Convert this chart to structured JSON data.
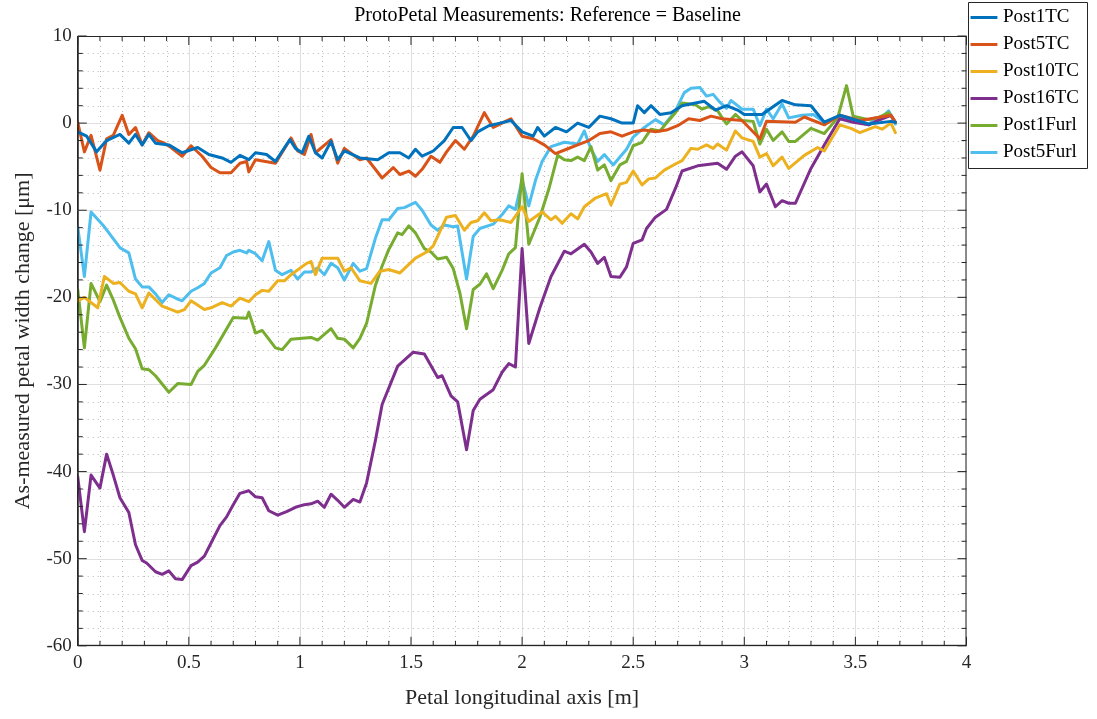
{
  "chart_data": {
    "type": "line",
    "title": "ProtoPetal Measurements: Reference = Baseline",
    "xlabel": "Petal longitudinal axis [m]",
    "ylabel": "As-measured petal width change [μm]",
    "xlim": [
      0,
      4
    ],
    "ylim": [
      -60,
      10
    ],
    "xticks": [
      0,
      {
        "value": 0.1,
        "label": null
      },
      {
        "value": 0.2,
        "label": null
      },
      {
        "value": 0.3,
        "label": null
      },
      {
        "value": 0.4,
        "label": null
      },
      0.5,
      {
        "value": 0.6,
        "label": null
      },
      {
        "value": 0.7,
        "label": null
      },
      {
        "value": 0.8,
        "label": null
      },
      {
        "value": 0.9,
        "label": null
      },
      1,
      {
        "value": 1.1,
        "label": null
      },
      {
        "value": 1.2,
        "label": null
      },
      {
        "value": 1.3,
        "label": null
      },
      {
        "value": 1.4,
        "label": null
      },
      1.5,
      {
        "value": 1.6,
        "label": null
      },
      {
        "value": 1.7,
        "label": null
      },
      {
        "value": 1.8,
        "label": null
      },
      {
        "value": 1.9,
        "label": null
      },
      2,
      {
        "value": 2.1,
        "label": null
      },
      {
        "value": 2.2,
        "label": null
      },
      {
        "value": 2.3,
        "label": null
      },
      {
        "value": 2.4,
        "label": null
      },
      2.5,
      {
        "value": 2.6,
        "label": null
      },
      {
        "value": 2.7,
        "label": null
      },
      {
        "value": 2.8,
        "label": null
      },
      {
        "value": 2.9,
        "label": null
      },
      3,
      {
        "value": 3.1,
        "label": null
      },
      {
        "value": 3.2,
        "label": null
      },
      {
        "value": 3.3,
        "label": null
      },
      {
        "value": 3.4,
        "label": null
      },
      3.5,
      {
        "value": 3.6,
        "label": null
      },
      {
        "value": 3.7,
        "label": null
      },
      {
        "value": 3.8,
        "label": null
      },
      {
        "value": 3.9,
        "label": null
      },
      4
    ],
    "yticks": [
      -60,
      {
        "value": -58,
        "label": null
      },
      {
        "value": -56,
        "label": null
      },
      {
        "value": -54,
        "label": null
      },
      {
        "value": -52,
        "label": null
      },
      -50,
      {
        "value": -48,
        "label": null
      },
      {
        "value": -46,
        "label": null
      },
      {
        "value": -44,
        "label": null
      },
      {
        "value": -42,
        "label": null
      },
      -40,
      {
        "value": -38,
        "label": null
      },
      {
        "value": -36,
        "label": null
      },
      {
        "value": -34,
        "label": null
      },
      {
        "value": -32,
        "label": null
      },
      -30,
      {
        "value": -28,
        "label": null
      },
      {
        "value": -26,
        "label": null
      },
      {
        "value": -24,
        "label": null
      },
      {
        "value": -22,
        "label": null
      },
      -20,
      {
        "value": -18,
        "label": null
      },
      {
        "value": -16,
        "label": null
      },
      {
        "value": -14,
        "label": null
      },
      {
        "value": -12,
        "label": null
      },
      -10,
      {
        "value": -8,
        "label": null
      },
      {
        "value": -6,
        "label": null
      },
      {
        "value": -4,
        "label": null
      },
      {
        "value": -2,
        "label": null
      },
      0,
      {
        "value": 2,
        "label": null
      },
      {
        "value": 4,
        "label": null
      },
      {
        "value": 6,
        "label": null
      },
      {
        "value": 8,
        "label": null
      },
      10
    ],
    "grid": true,
    "legend": "top right",
    "marker": "none",
    "line_style": "solid",
    "series": [
      {
        "name": "Post1TC",
        "color": "#0072bd",
        "x": [
          0,
          0.04,
          0.085,
          0.13,
          0.19,
          0.23,
          0.26,
          0.29,
          0.32,
          0.35,
          0.41,
          0.47,
          0.54,
          0.59,
          0.65,
          0.69,
          0.73,
          0.77,
          0.8,
          0.85,
          0.89,
          0.955,
          0.98,
          1.01,
          1.04,
          1.07,
          1.1,
          1.14,
          1.17,
          1.2,
          1.27,
          1.35,
          1.4,
          1.45,
          1.49,
          1.52,
          1.55,
          1.6,
          1.65,
          1.69,
          1.73,
          1.77,
          1.8,
          1.85,
          1.9,
          1.95,
          2.0,
          2.05,
          2.07,
          2.1,
          2.15,
          2.2,
          2.25,
          2.3,
          2.35,
          2.4,
          2.45,
          2.5,
          2.52,
          2.55,
          2.58,
          2.62,
          2.67,
          2.72,
          2.78,
          2.82,
          2.87,
          2.92,
          2.97,
          3.0,
          3.08,
          3.17,
          3.23,
          3.3,
          3.36,
          3.43,
          3.56,
          3.66,
          3.68
        ],
        "values": [
          -1.0,
          -1.5,
          -3.3,
          -2.0,
          -1.3,
          -2.3,
          -1.3,
          -2.5,
          -1.3,
          -2.3,
          -2.5,
          -3.4,
          -2.8,
          -3.6,
          -4.0,
          -4.5,
          -3.7,
          -4.2,
          -3.4,
          -3.6,
          -4.4,
          -1.9,
          -2.9,
          -3.4,
          -1.5,
          -3.4,
          -4.0,
          -2.1,
          -4.2,
          -3.2,
          -4.0,
          -4.2,
          -3.4,
          -3.4,
          -4.0,
          -3.0,
          -3.8,
          -3.2,
          -2.0,
          -0.5,
          -0.5,
          -2.0,
          -1.0,
          -0.3,
          0.0,
          0.3,
          -1.0,
          -1.5,
          -0.5,
          -1.5,
          -0.5,
          -1.0,
          0.0,
          -0.5,
          0.8,
          0.5,
          0.0,
          0.0,
          2.0,
          1.2,
          2.0,
          1.0,
          1.2,
          2.0,
          2.3,
          2.5,
          1.5,
          2.0,
          1.5,
          1.0,
          1.0,
          2.6,
          2.1,
          2.0,
          0.1,
          0.9,
          -0.1,
          0.2,
          0.1
        ]
      },
      {
        "name": "Post5TC",
        "color": "#d95319",
        "x": [
          0,
          0.03,
          0.06,
          0.1,
          0.13,
          0.16,
          0.2,
          0.23,
          0.26,
          0.29,
          0.32,
          0.36,
          0.39,
          0.42,
          0.47,
          0.51,
          0.56,
          0.6,
          0.64,
          0.69,
          0.73,
          0.76,
          0.77,
          0.8,
          0.89,
          0.96,
          0.99,
          1.02,
          1.05,
          1.07,
          1.14,
          1.17,
          1.2,
          1.27,
          1.3,
          1.37,
          1.42,
          1.45,
          1.49,
          1.52,
          1.55,
          1.59,
          1.63,
          1.66,
          1.7,
          1.74,
          1.78,
          1.83,
          1.87,
          1.95,
          2.0,
          2.05,
          2.1,
          2.15,
          2.2,
          2.25,
          2.3,
          2.35,
          2.4,
          2.45,
          2.5,
          2.55,
          2.6,
          2.65,
          2.7,
          2.75,
          2.8,
          2.85,
          2.9,
          2.99,
          3.07,
          3.1,
          3.23,
          3.27,
          3.36,
          3.43,
          3.52,
          3.66,
          3.68
        ],
        "values": [
          0.1,
          -3.3,
          -1.4,
          -5.4,
          -1.8,
          -1.4,
          0.9,
          -1.3,
          -0.5,
          -2.5,
          -1.1,
          -2.0,
          -2.3,
          -2.8,
          -3.8,
          -2.6,
          -3.8,
          -5.1,
          -5.7,
          -5.7,
          -4.6,
          -4.4,
          -5.6,
          -4.2,
          -4.6,
          -1.7,
          -3.2,
          -3.6,
          -1.3,
          -3.4,
          -1.9,
          -4.6,
          -2.9,
          -4.2,
          -4.0,
          -6.3,
          -5.1,
          -5.9,
          -5.5,
          -6.1,
          -5.3,
          -3.8,
          -4.5,
          -3.3,
          -2.0,
          -3.0,
          -1.5,
          1.2,
          -0.5,
          0.5,
          -1.5,
          -1.8,
          -2.5,
          -3.5,
          -3.0,
          -2.5,
          -2.0,
          -1.2,
          -1.0,
          -1.5,
          -1.0,
          -0.8,
          -1.0,
          -0.8,
          -0.3,
          0.5,
          0.3,
          0.8,
          0.5,
          0.3,
          -1.8,
          0.2,
          0.1,
          0.7,
          -0.2,
          0.9,
          0.3,
          0.9,
          0.1
        ]
      },
      {
        "name": "Post10TC",
        "color": "#edb120",
        "x": [
          0,
          0.03,
          0.09,
          0.12,
          0.16,
          0.19,
          0.23,
          0.26,
          0.29,
          0.32,
          0.38,
          0.45,
          0.48,
          0.51,
          0.57,
          0.6,
          0.65,
          0.69,
          0.73,
          0.77,
          0.8,
          0.83,
          0.86,
          0.9,
          0.93,
          0.96,
          1.03,
          1.05,
          1.07,
          1.1,
          1.17,
          1.2,
          1.23,
          1.27,
          1.32,
          1.36,
          1.4,
          1.45,
          1.52,
          1.57,
          1.6,
          1.66,
          1.7,
          1.74,
          1.77,
          1.8,
          1.83,
          1.86,
          1.9,
          1.95,
          2.0,
          2.03,
          2.09,
          2.13,
          2.15,
          2.18,
          2.22,
          2.25,
          2.28,
          2.33,
          2.38,
          2.4,
          2.44,
          2.47,
          2.5,
          2.54,
          2.57,
          2.6,
          2.64,
          2.69,
          2.72,
          2.76,
          2.79,
          2.83,
          2.86,
          2.88,
          2.92,
          2.96,
          2.99,
          3.04,
          3.07,
          3.1,
          3.13,
          3.17,
          3.2,
          3.27,
          3.33,
          3.36,
          3.43,
          3.48,
          3.52,
          3.59,
          3.62,
          3.66,
          3.68
        ],
        "values": [
          -20.4,
          -20.0,
          -21.2,
          -17.6,
          -18.4,
          -18.3,
          -19.3,
          -19.6,
          -21.2,
          -19.5,
          -21.0,
          -21.7,
          -21.4,
          -20.4,
          -21.4,
          -21.2,
          -20.6,
          -21.0,
          -20.1,
          -20.5,
          -19.7,
          -19.2,
          -19.3,
          -18.1,
          -18.1,
          -17.4,
          -16.1,
          -15.9,
          -17.4,
          -15.5,
          -15.5,
          -17.0,
          -16.6,
          -18.1,
          -18.4,
          -17.0,
          -16.8,
          -17.2,
          -15.5,
          -14.8,
          -14.1,
          -10.8,
          -10.6,
          -12.3,
          -11.4,
          -11.2,
          -10.3,
          -11.2,
          -11.1,
          -11.4,
          -9.6,
          -11.3,
          -10.2,
          -11.1,
          -10.7,
          -11.5,
          -10.4,
          -11.0,
          -9.6,
          -8.6,
          -8.1,
          -9.4,
          -7.0,
          -6.8,
          -5.5,
          -7.1,
          -6.4,
          -6.3,
          -5.4,
          -4.7,
          -4.3,
          -2.9,
          -3.0,
          -2.5,
          -2.9,
          -2.4,
          -3.1,
          -0.9,
          -1.7,
          -2.1,
          -3.9,
          -3.5,
          -4.9,
          -3.9,
          -5.2,
          -3.7,
          -2.8,
          -3.2,
          -0.2,
          -0.6,
          -1.1,
          -0.4,
          -0.7,
          0.0,
          -1.1
        ]
      },
      {
        "name": "Post16TC",
        "color": "#7e2f8e",
        "x": [
          0,
          0.03,
          0.06,
          0.1,
          0.13,
          0.16,
          0.19,
          0.23,
          0.26,
          0.29,
          0.31,
          0.35,
          0.38,
          0.41,
          0.44,
          0.47,
          0.51,
          0.54,
          0.57,
          0.6,
          0.64,
          0.67,
          0.7,
          0.73,
          0.77,
          0.8,
          0.83,
          0.86,
          0.9,
          0.94,
          0.98,
          1.02,
          1.05,
          1.08,
          1.11,
          1.14,
          1.17,
          1.2,
          1.24,
          1.27,
          1.3,
          1.34,
          1.37,
          1.44,
          1.51,
          1.56,
          1.62,
          1.64,
          1.68,
          1.71,
          1.75,
          1.78,
          1.81,
          1.87,
          1.91,
          1.94,
          1.97,
          2.0,
          2.03,
          2.08,
          2.13,
          2.19,
          2.22,
          2.28,
          2.31,
          2.34,
          2.37,
          2.4,
          2.44,
          2.47,
          2.5,
          2.54,
          2.56,
          2.6,
          2.65,
          2.69,
          2.72,
          2.79,
          2.88,
          2.92,
          2.96,
          2.99,
          3.04,
          3.07,
          3.1,
          3.14,
          3.17,
          3.2,
          3.23,
          3.3,
          3.36,
          3.43,
          3.49,
          3.56,
          3.6,
          3.66,
          3.68
        ],
        "values": [
          -40.6,
          -46.9,
          -40.4,
          -41.9,
          -38.0,
          -40.4,
          -43.0,
          -44.7,
          -48.4,
          -50.2,
          -50.5,
          -51.5,
          -51.8,
          -51.4,
          -52.3,
          -52.4,
          -50.8,
          -50.4,
          -49.7,
          -48.2,
          -46.2,
          -45.2,
          -43.8,
          -42.5,
          -42.2,
          -42.9,
          -43.0,
          -44.5,
          -45.0,
          -44.6,
          -44.1,
          -43.8,
          -43.7,
          -43.4,
          -44.1,
          -42.6,
          -43.3,
          -44.1,
          -43.2,
          -43.5,
          -41.3,
          -36.4,
          -32.3,
          -27.9,
          -26.3,
          -26.5,
          -29.2,
          -29.0,
          -31.3,
          -32.0,
          -37.5,
          -33.0,
          -31.7,
          -30.6,
          -28.6,
          -27.6,
          -28.0,
          -14.4,
          -25.3,
          -21.2,
          -17.6,
          -14.7,
          -15.0,
          -13.9,
          -14.8,
          -16.1,
          -15.4,
          -17.6,
          -17.7,
          -16.5,
          -13.8,
          -13.4,
          -12.1,
          -10.8,
          -9.9,
          -7.5,
          -5.5,
          -4.9,
          -4.6,
          -5.3,
          -3.8,
          -3.3,
          -4.9,
          -7.9,
          -7.0,
          -9.6,
          -8.9,
          -9.2,
          -9.2,
          -5.2,
          -2.5,
          0.5,
          0.1,
          -0.2,
          0.3,
          0.9,
          0.1
        ]
      },
      {
        "name": "Post1Furl",
        "color": "#77ac30",
        "x": [
          0,
          0.03,
          0.06,
          0.1,
          0.13,
          0.16,
          0.19,
          0.23,
          0.26,
          0.29,
          0.32,
          0.35,
          0.41,
          0.45,
          0.51,
          0.54,
          0.57,
          0.62,
          0.65,
          0.7,
          0.76,
          0.77,
          0.8,
          0.83,
          0.89,
          0.92,
          0.96,
          1.01,
          1.05,
          1.08,
          1.14,
          1.17,
          1.2,
          1.24,
          1.27,
          1.3,
          1.34,
          1.37,
          1.4,
          1.44,
          1.46,
          1.49,
          1.52,
          1.56,
          1.59,
          1.62,
          1.66,
          1.69,
          1.72,
          1.75,
          1.78,
          1.81,
          1.84,
          1.87,
          1.91,
          1.94,
          1.97,
          2.0,
          2.03,
          2.08,
          2.12,
          2.16,
          2.19,
          2.22,
          2.25,
          2.28,
          2.31,
          2.34,
          2.37,
          2.4,
          2.44,
          2.47,
          2.5,
          2.54,
          2.58,
          2.62,
          2.65,
          2.69,
          2.72,
          2.78,
          2.81,
          2.84,
          2.88,
          2.92,
          2.96,
          2.99,
          3.04,
          3.07,
          3.1,
          3.13,
          3.17,
          3.2,
          3.23,
          3.3,
          3.36,
          3.42,
          3.46,
          3.49,
          3.56,
          3.6,
          3.65,
          3.68
        ],
        "values": [
          -19.1,
          -25.8,
          -18.4,
          -20.5,
          -18.6,
          -20.3,
          -22.3,
          -24.7,
          -25.9,
          -28.2,
          -28.3,
          -29.0,
          -30.9,
          -29.9,
          -30.0,
          -28.5,
          -27.8,
          -25.8,
          -24.5,
          -22.3,
          -22.4,
          -21.7,
          -24.1,
          -23.8,
          -25.8,
          -26.0,
          -24.8,
          -24.7,
          -24.6,
          -24.9,
          -23.6,
          -24.7,
          -24.8,
          -25.8,
          -24.7,
          -23.0,
          -18.6,
          -16.4,
          -14.5,
          -12.6,
          -12.8,
          -11.8,
          -12.6,
          -14.4,
          -14.8,
          -15.6,
          -15.4,
          -16.7,
          -19.5,
          -23.6,
          -19.1,
          -18.5,
          -17.3,
          -19.0,
          -16.9,
          -15.0,
          -14.3,
          -5.8,
          -13.9,
          -10.8,
          -7.6,
          -3.7,
          -4.2,
          -4.3,
          -3.9,
          -4.3,
          -2.7,
          -5.4,
          -4.8,
          -6.6,
          -4.8,
          -4.4,
          -2.6,
          -2.2,
          -0.7,
          -0.9,
          0.0,
          1.2,
          2.3,
          2.1,
          1.6,
          1.9,
          1.4,
          -0.1,
          1.0,
          0.3,
          0.2,
          -2.4,
          -0.7,
          -2.0,
          -1.0,
          -2.1,
          -2.1,
          -0.6,
          -1.2,
          0.6,
          4.3,
          0.8,
          0.4,
          0.6,
          1.2,
          0.1
        ]
      },
      {
        "name": "Post5Furl",
        "color": "#4dbeee",
        "x": [
          0,
          0.03,
          0.06,
          0.12,
          0.19,
          0.23,
          0.26,
          0.29,
          0.32,
          0.35,
          0.38,
          0.41,
          0.45,
          0.47,
          0.51,
          0.54,
          0.57,
          0.6,
          0.64,
          0.67,
          0.7,
          0.73,
          0.76,
          0.77,
          0.8,
          0.83,
          0.86,
          0.89,
          0.92,
          0.96,
          0.99,
          1.02,
          1.05,
          1.08,
          1.11,
          1.14,
          1.17,
          1.2,
          1.24,
          1.27,
          1.3,
          1.34,
          1.37,
          1.4,
          1.44,
          1.47,
          1.52,
          1.55,
          1.59,
          1.62,
          1.65,
          1.69,
          1.71,
          1.75,
          1.78,
          1.81,
          1.87,
          1.91,
          1.94,
          1.97,
          2.0,
          2.03,
          2.06,
          2.09,
          2.13,
          2.19,
          2.25,
          2.28,
          2.31,
          2.34,
          2.37,
          2.41,
          2.45,
          2.47,
          2.5,
          2.55,
          2.6,
          2.64,
          2.69,
          2.73,
          2.76,
          2.8,
          2.83,
          2.86,
          2.89,
          2.92,
          2.94,
          2.99,
          3.04,
          3.07,
          3.1,
          3.13,
          3.17,
          3.2,
          3.26,
          3.31,
          3.36,
          3.43,
          3.49,
          3.56,
          3.59,
          3.62,
          3.65,
          3.68
        ],
        "values": [
          -11.9,
          -17.6,
          -10.2,
          -11.9,
          -14.3,
          -14.9,
          -17.9,
          -18.8,
          -18.8,
          -19.6,
          -20.6,
          -19.7,
          -20.2,
          -20.4,
          -19.3,
          -18.9,
          -18.4,
          -17.2,
          -16.6,
          -15.2,
          -14.8,
          -14.6,
          -14.9,
          -14.6,
          -15.0,
          -15.8,
          -13.6,
          -16.9,
          -17.4,
          -16.9,
          -17.9,
          -17.1,
          -17.1,
          -16.6,
          -17.4,
          -16.1,
          -16.6,
          -18.0,
          -16.1,
          -17.0,
          -16.7,
          -13.2,
          -11.1,
          -11.1,
          -9.8,
          -9.7,
          -9.1,
          -10.0,
          -11.7,
          -12.3,
          -11.7,
          -11.9,
          -11.8,
          -17.9,
          -13.0,
          -12.1,
          -11.6,
          -10.5,
          -9.5,
          -9.9,
          -6.5,
          -9.5,
          -6.6,
          -4.4,
          -2.7,
          -2.2,
          -2.4,
          -0.9,
          -3.0,
          -4.4,
          -3.6,
          -4.8,
          -3.6,
          -3.0,
          -1.6,
          -0.5,
          0.4,
          -0.2,
          1.4,
          3.5,
          4.0,
          4.1,
          3.1,
          3.3,
          2.4,
          1.7,
          2.6,
          1.6,
          1.6,
          -0.3,
          1.6,
          0.5,
          2.2,
          0.6,
          0.9,
          1.0,
          0.1,
          0.7,
          0.3,
          -0.2,
          0.6,
          0.7,
          1.4,
          -0.1
        ]
      }
    ]
  }
}
